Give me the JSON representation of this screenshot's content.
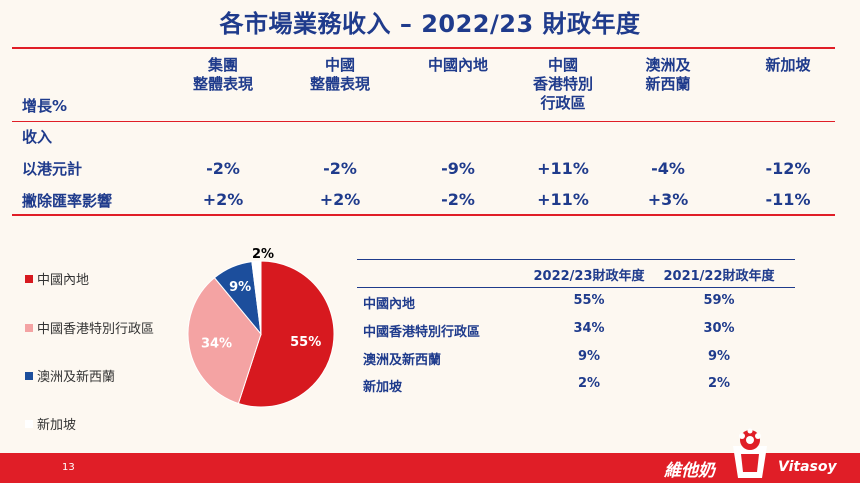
{
  "title": "各市場業務收入 – 2022/23 財政年度",
  "growth_table": {
    "corner_label": "增長%",
    "columns": [
      {
        "lines": [
          "集團",
          "整體表現"
        ]
      },
      {
        "lines": [
          "中國",
          "整體表現"
        ]
      },
      {
        "lines": [
          "中國內地"
        ]
      },
      {
        "lines": [
          "中國",
          "香港特別",
          "行政區"
        ]
      },
      {
        "lines": [
          "澳洲及",
          "新西蘭"
        ]
      },
      {
        "lines": [
          "新加坡"
        ]
      }
    ],
    "section_label": "收入",
    "rows": [
      {
        "label": "以港元計",
        "values": [
          "-2%",
          "-2%",
          "-9%",
          "+11%",
          "-4%",
          "-12%"
        ]
      },
      {
        "label": "撇除匯率影響",
        "values": [
          "+2%",
          "+2%",
          "-2%",
          "+11%",
          "+3%",
          "-11%"
        ]
      }
    ]
  },
  "legend": [
    {
      "label": "中國內地",
      "color": "#d7191f"
    },
    {
      "label": "中國香港特別行政區",
      "color": "#f4a3a3"
    },
    {
      "label": "澳洲及新西蘭",
      "color": "#1c4e9c"
    },
    {
      "label": "新加坡",
      "color": "#ffffff"
    }
  ],
  "chart_data": {
    "type": "pie",
    "categories": [
      "中國內地",
      "中國香港特別行政區",
      "澳洲及新西蘭",
      "新加坡"
    ],
    "values": [
      55,
      34,
      9,
      2
    ],
    "labels": [
      "55%",
      "34%",
      "9%",
      "2%"
    ],
    "colors": [
      "#d7191f",
      "#f4a3a3",
      "#1c4e9c",
      "#ffffff"
    ]
  },
  "share_table": {
    "headers": [
      "2022/23財政年度",
      "2021/22財政年度"
    ],
    "rows": [
      {
        "label": "中國內地",
        "values": [
          "55%",
          "59%"
        ]
      },
      {
        "label": "中國香港特別行政區",
        "values": [
          "34%",
          "30%"
        ]
      },
      {
        "label": "澳洲及新西蘭",
        "values": [
          "9%",
          "9%"
        ]
      },
      {
        "label": "新加坡",
        "values": [
          "2%",
          "2%"
        ]
      }
    ]
  },
  "footer": {
    "page_number": "13",
    "brand_cn": "維他奶",
    "brand_en": "Vitasoy",
    "logo_icon": "vitasoy-flower-cup-icon"
  }
}
